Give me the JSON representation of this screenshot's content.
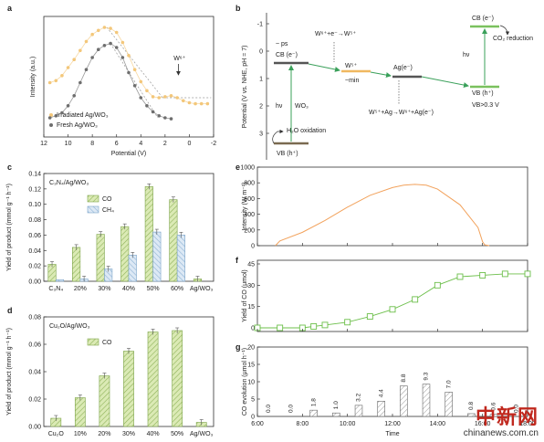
{
  "chart_data": [
    {
      "id": "a",
      "type": "line",
      "panel_label": "a",
      "xlabel": "Potential (V)",
      "ylabel": "Intensity (a.u.)",
      "xticks": [
        12,
        10,
        8,
        6,
        4,
        2,
        0,
        -2
      ],
      "xlim": [
        12,
        -2
      ],
      "annotation": "W⁶⁺",
      "series": [
        {
          "name": "Irradiated Ag/WO₃",
          "color": "#f3c77a",
          "x": [
            11.5,
            11,
            10.5,
            10,
            9.5,
            9,
            8.5,
            8,
            7.5,
            7,
            6.5,
            6,
            5.5,
            5,
            4.5,
            4,
            3.5,
            3,
            2.5,
            2,
            1.5,
            1,
            0.5,
            0,
            -0.5,
            -1,
            -1.5
          ],
          "y": [
            0.45,
            0.47,
            0.52,
            0.6,
            0.68,
            0.77,
            0.86,
            0.93,
            0.97,
            1.0,
            0.99,
            0.95,
            0.85,
            0.72,
            0.58,
            0.46,
            0.37,
            0.31,
            0.3,
            0.31,
            0.32,
            0.3,
            0.27,
            0.25,
            0.24,
            0.24,
            0.24
          ]
        },
        {
          "name": "Fresh Ag/WO₃",
          "color": "#6e6e6e",
          "x": [
            11.5,
            11,
            10.5,
            10,
            9.5,
            9,
            8.5,
            8,
            7.5,
            7,
            6.5,
            6,
            5.5,
            5,
            4.5,
            4,
            3.5,
            3,
            2.5,
            2,
            1.5
          ],
          "y": [
            0.1,
            0.12,
            0.15,
            0.22,
            0.32,
            0.45,
            0.58,
            0.7,
            0.78,
            0.82,
            0.84,
            0.8,
            0.7,
            0.55,
            0.42,
            0.3,
            0.22,
            0.16,
            0.12,
            0.1,
            0.09
          ]
        }
      ]
    },
    {
      "id": "b",
      "type": "diagram",
      "panel_label": "b",
      "ylabel": "Potential (V vs. NHE, pH = 7)",
      "yticks": [
        -1,
        0,
        1,
        2,
        3
      ],
      "labels": {
        "cb": "CB (e⁻)",
        "ps": "~ ps",
        "w5plus": "W⁵⁺",
        "min": "~min",
        "ag": "Ag(e⁻)",
        "reaction1": "W⁶⁺+e⁻→W⁵⁺",
        "reaction2": "W⁵⁺+Ag→W⁶⁺+Ag(e⁻)",
        "hv": "hν",
        "wo3": "WO₃",
        "vb": "VB (h⁺)",
        "h2o": "H₂O oxidation",
        "cb2": "CB (e⁻)",
        "co2": "CO₂ reduction",
        "hv2": "hν",
        "vb2": "VB (h⁺)",
        "vb_note": "VB>0.3 V"
      }
    },
    {
      "id": "c",
      "type": "bar",
      "panel_label": "c",
      "title": "C₃N₄/Ag/WO₃",
      "ylabel": "Yield of product (mmol g⁻¹ h⁻¹)",
      "categories": [
        "C₃N₄",
        "20%",
        "30%",
        "40%",
        "50%",
        "60%",
        "Ag/WO₃"
      ],
      "ylim": [
        0,
        0.14
      ],
      "yticks": [
        0.0,
        0.02,
        0.04,
        0.06,
        0.08,
        0.1,
        0.12,
        0.14
      ],
      "series": [
        {
          "name": "CO",
          "color": "#c3dc8e",
          "values": [
            0.022,
            0.044,
            0.061,
            0.071,
            0.123,
            0.106,
            0.003
          ]
        },
        {
          "name": "CH₄",
          "color": "#bcd7ee",
          "values": [
            0.002,
            0.003,
            0.016,
            0.034,
            0.064,
            0.06,
            0.0
          ]
        }
      ]
    },
    {
      "id": "d",
      "type": "bar",
      "panel_label": "d",
      "title": "Cu₂O/Ag/WO₃",
      "ylabel": "Yield of product (mmol g⁻¹ h⁻¹)",
      "categories": [
        "Cu₂O",
        "10%",
        "20%",
        "30%",
        "40%",
        "50%",
        "Ag/WO₃"
      ],
      "ylim": [
        0,
        0.08
      ],
      "yticks": [
        0.0,
        0.02,
        0.04,
        0.06,
        0.08
      ],
      "series": [
        {
          "name": "CO",
          "color": "#c3dc8e",
          "values": [
            0.006,
            0.021,
            0.037,
            0.055,
            0.069,
            0.07,
            0.003
          ]
        }
      ]
    },
    {
      "id": "e",
      "type": "line",
      "panel_label": "e",
      "ylabel": "Intensity (W m⁻²)",
      "ylim": [
        0,
        1000
      ],
      "yticks": [
        0,
        200,
        400,
        600,
        800,
        1000
      ],
      "xlim": [
        6,
        18
      ],
      "series": [
        {
          "name": "",
          "color": "#f2a25c",
          "x": [
            6.8,
            7,
            8,
            9,
            10,
            11,
            12,
            12.5,
            13,
            13.5,
            14,
            15,
            15.8,
            16,
            16.1,
            16.3
          ],
          "y": [
            0,
            60,
            170,
            320,
            490,
            640,
            740,
            770,
            780,
            770,
            720,
            520,
            230,
            50,
            10,
            0
          ]
        }
      ]
    },
    {
      "id": "f",
      "type": "line",
      "panel_label": "f",
      "ylabel": "Yield of CO (μmol)",
      "ylim": [
        0,
        45
      ],
      "yticks": [
        0,
        15,
        30,
        45
      ],
      "xlim": [
        6,
        18
      ],
      "series": [
        {
          "name": "",
          "color": "#6cbf4a",
          "x": [
            6,
            7,
            8,
            8.5,
            9,
            10,
            11,
            12,
            13,
            14,
            15,
            16,
            17,
            18
          ],
          "y": [
            0,
            0,
            0,
            1,
            2,
            4,
            8,
            13,
            20,
            30,
            36,
            37,
            38,
            38
          ]
        }
      ]
    },
    {
      "id": "g",
      "type": "bar",
      "panel_label": "g",
      "ylabel": "CO evolution (μmol h⁻¹)",
      "xlabel": "Time",
      "ylim": [
        0,
        20
      ],
      "yticks": [
        0,
        5,
        10,
        15,
        20
      ],
      "xlim": [
        6,
        18
      ],
      "xticklabels": [
        "6:00",
        "8:00",
        "10:00",
        "12:00",
        "14:00",
        "16:00",
        "18:00"
      ],
      "x": [
        6.5,
        7.5,
        8.5,
        9.5,
        10.5,
        11.5,
        12.5,
        13.5,
        14.5,
        15.5,
        16.5,
        17.5
      ],
      "values": [
        0.0,
        0.0,
        1.8,
        1.0,
        3.2,
        4.4,
        8.8,
        9.3,
        7.0,
        0.8,
        0.6,
        0.0
      ],
      "value_labels": [
        "0.0",
        "0.0",
        "1.8",
        "1.0",
        "3.2",
        "4.4",
        "8.8",
        "9.3",
        "7.0",
        "0.8",
        "0.6",
        "0.0"
      ]
    }
  ],
  "watermark": {
    "cn": "中新网",
    "url": "chinanews.com.cn"
  }
}
